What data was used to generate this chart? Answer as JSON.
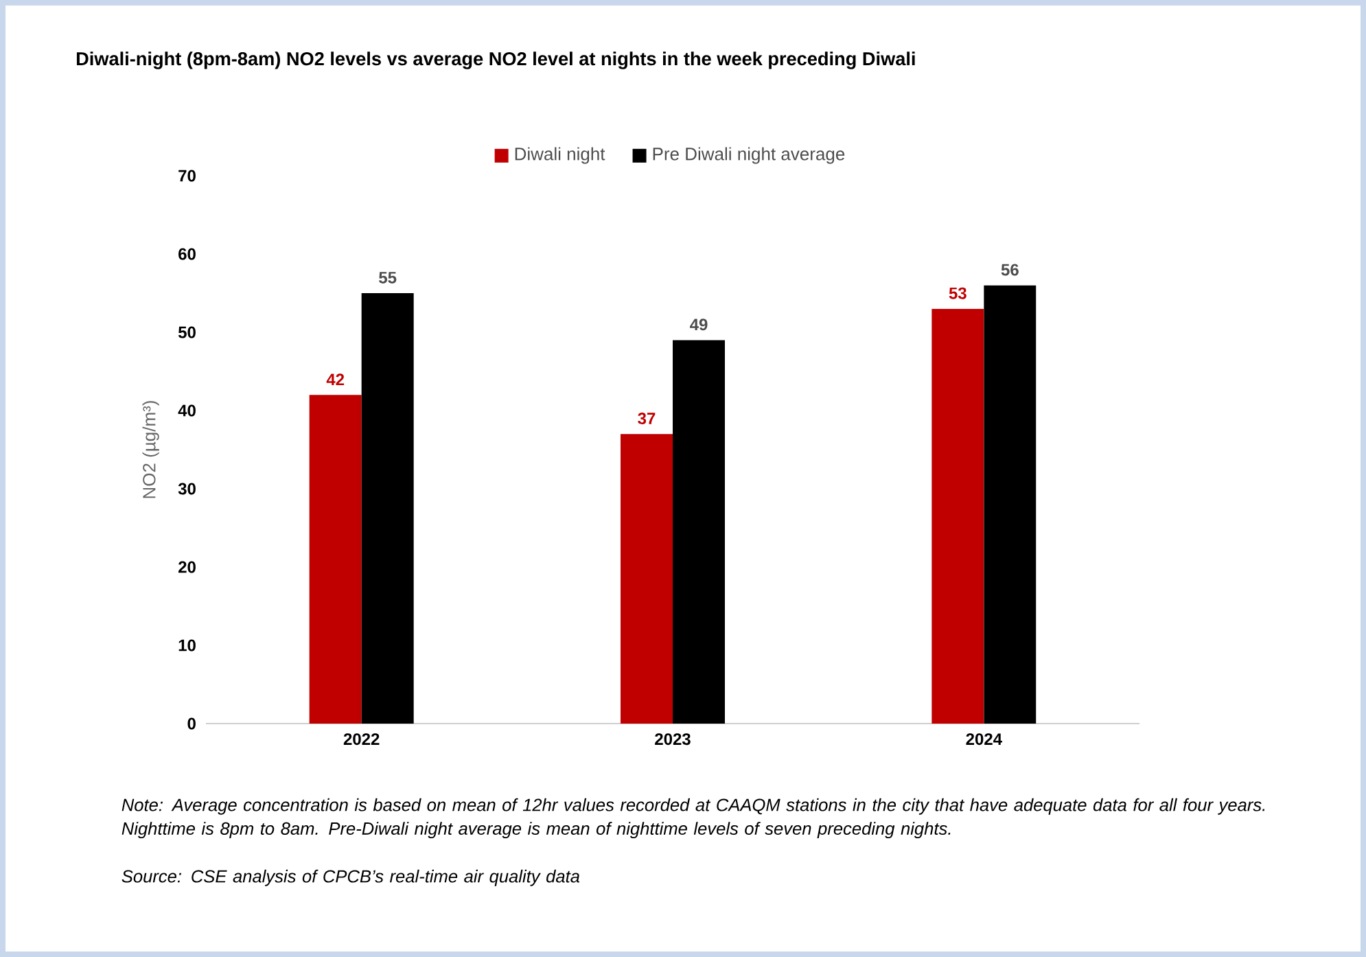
{
  "chart_data": {
    "type": "bar",
    "title": "Diwali-night (8pm-8am) NO2 levels vs average NO2 level at nights in the week preceding Diwali",
    "ylabel": "NO2 (µg/m³)",
    "categories": [
      "2022",
      "2023",
      "2024"
    ],
    "series": [
      {
        "name": "Diwali night",
        "color": "#c00000",
        "values": [
          42,
          37,
          53
        ]
      },
      {
        "name": "Pre Diwali night average",
        "color": "#000000",
        "values": [
          55,
          49,
          56
        ]
      }
    ],
    "ylim": [
      0,
      70
    ],
    "yticks": [
      0,
      10,
      20,
      30,
      40,
      50,
      60,
      70
    ],
    "data_labels": true,
    "legend": "top",
    "grid": false,
    "annotations": [
      "Note: Average concentration is based on mean of 12hr values recorded at CAAQM stations in the city that have adequate data for all four years. Nighttime is 8pm to 8am. Pre-Diwali night average is mean of nighttime levels of seven preceding nights.",
      "Source: CSE analysis of CPCB’s real-time air quality data"
    ]
  }
}
